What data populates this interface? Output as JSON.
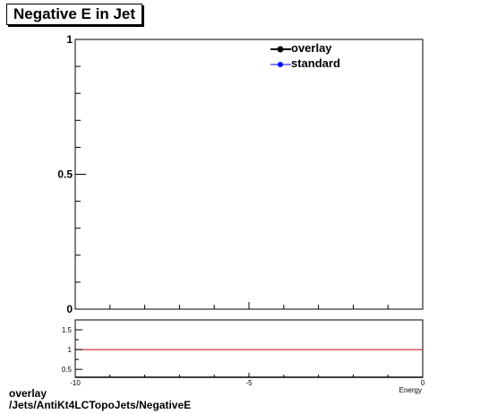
{
  "title": "Negative E in Jet",
  "footer": {
    "line1": "overlay",
    "line2": "/Jets/AntiKt4LCTopoJets/NegativeE"
  },
  "chart_data": [
    {
      "type": "line",
      "panel": "main",
      "title": "Negative E in Jet",
      "xlabel": "Energy",
      "ylabel": "",
      "xlim": [
        -10,
        0
      ],
      "ylim": [
        0,
        1
      ],
      "y_tick_labels": [
        "0",
        "0.5",
        "1"
      ],
      "x_tick_labels": [
        "-10",
        "-5",
        "0"
      ],
      "legend_position": "top-right",
      "series": [
        {
          "name": "overlay",
          "color": "#000000",
          "marker": "circle",
          "x": [],
          "y": []
        },
        {
          "name": "standard",
          "color": "#0000ff",
          "marker": "circle",
          "x": [],
          "y": []
        }
      ]
    },
    {
      "type": "line",
      "panel": "ratio",
      "xlim": [
        -10,
        0
      ],
      "ylim": [
        0.3,
        1.75
      ],
      "y_tick_labels": [
        "0.5",
        "1",
        "1.5"
      ],
      "x_tick_labels": [
        "-10",
        "-5",
        "0"
      ],
      "xlabel": "Energy",
      "reference_line": {
        "y": 1,
        "color": "#cc0000"
      }
    }
  ]
}
